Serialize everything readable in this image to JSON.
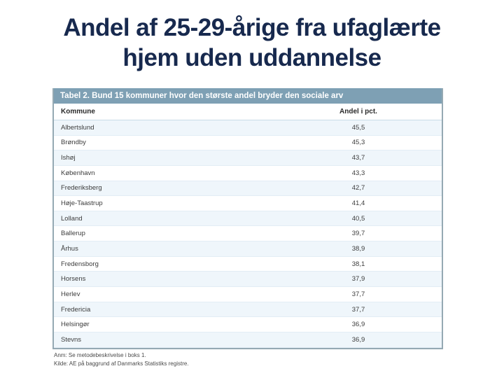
{
  "slide": {
    "title_lines": [
      "Andel af 25-29-årige fra ufaglærte",
      "hjem uden uddannelse"
    ]
  },
  "table": {
    "caption": "Tabel 2. Bund 15 kommuner hvor den største andel bryder den sociale arv",
    "columns": {
      "kommune": "Kommune",
      "andel": "Andel i pct."
    },
    "rows": [
      {
        "kommune": "Albertslund",
        "andel": "45,5"
      },
      {
        "kommune": "Brøndby",
        "andel": "45,3"
      },
      {
        "kommune": "Ishøj",
        "andel": "43,7"
      },
      {
        "kommune": "København",
        "andel": "43,3"
      },
      {
        "kommune": "Frederiksberg",
        "andel": "42,7"
      },
      {
        "kommune": "Høje-Taastrup",
        "andel": "41,4"
      },
      {
        "kommune": "Lolland",
        "andel": "40,5"
      },
      {
        "kommune": "Ballerup",
        "andel": "39,7"
      },
      {
        "kommune": "Århus",
        "andel": "38,9"
      },
      {
        "kommune": "Fredensborg",
        "andel": "38,1"
      },
      {
        "kommune": "Horsens",
        "andel": "37,9"
      },
      {
        "kommune": "Herlev",
        "andel": "37,7"
      },
      {
        "kommune": "Fredericia",
        "andel": "37,7"
      },
      {
        "kommune": "Helsingør",
        "andel": "36,9"
      },
      {
        "kommune": "Stevns",
        "andel": "36,9"
      }
    ],
    "notes": {
      "anm": "Anm: Se metodebeskrivelse i boks 1.",
      "kilde": "Kilde: AE på baggrund af Danmarks Statistiks registre."
    }
  },
  "colors": {
    "title_text": "#17294e",
    "table_header_bg": "#7ea0b4",
    "zebra_row_bg": "#eff6fb",
    "table_border": "#95a9b3"
  }
}
